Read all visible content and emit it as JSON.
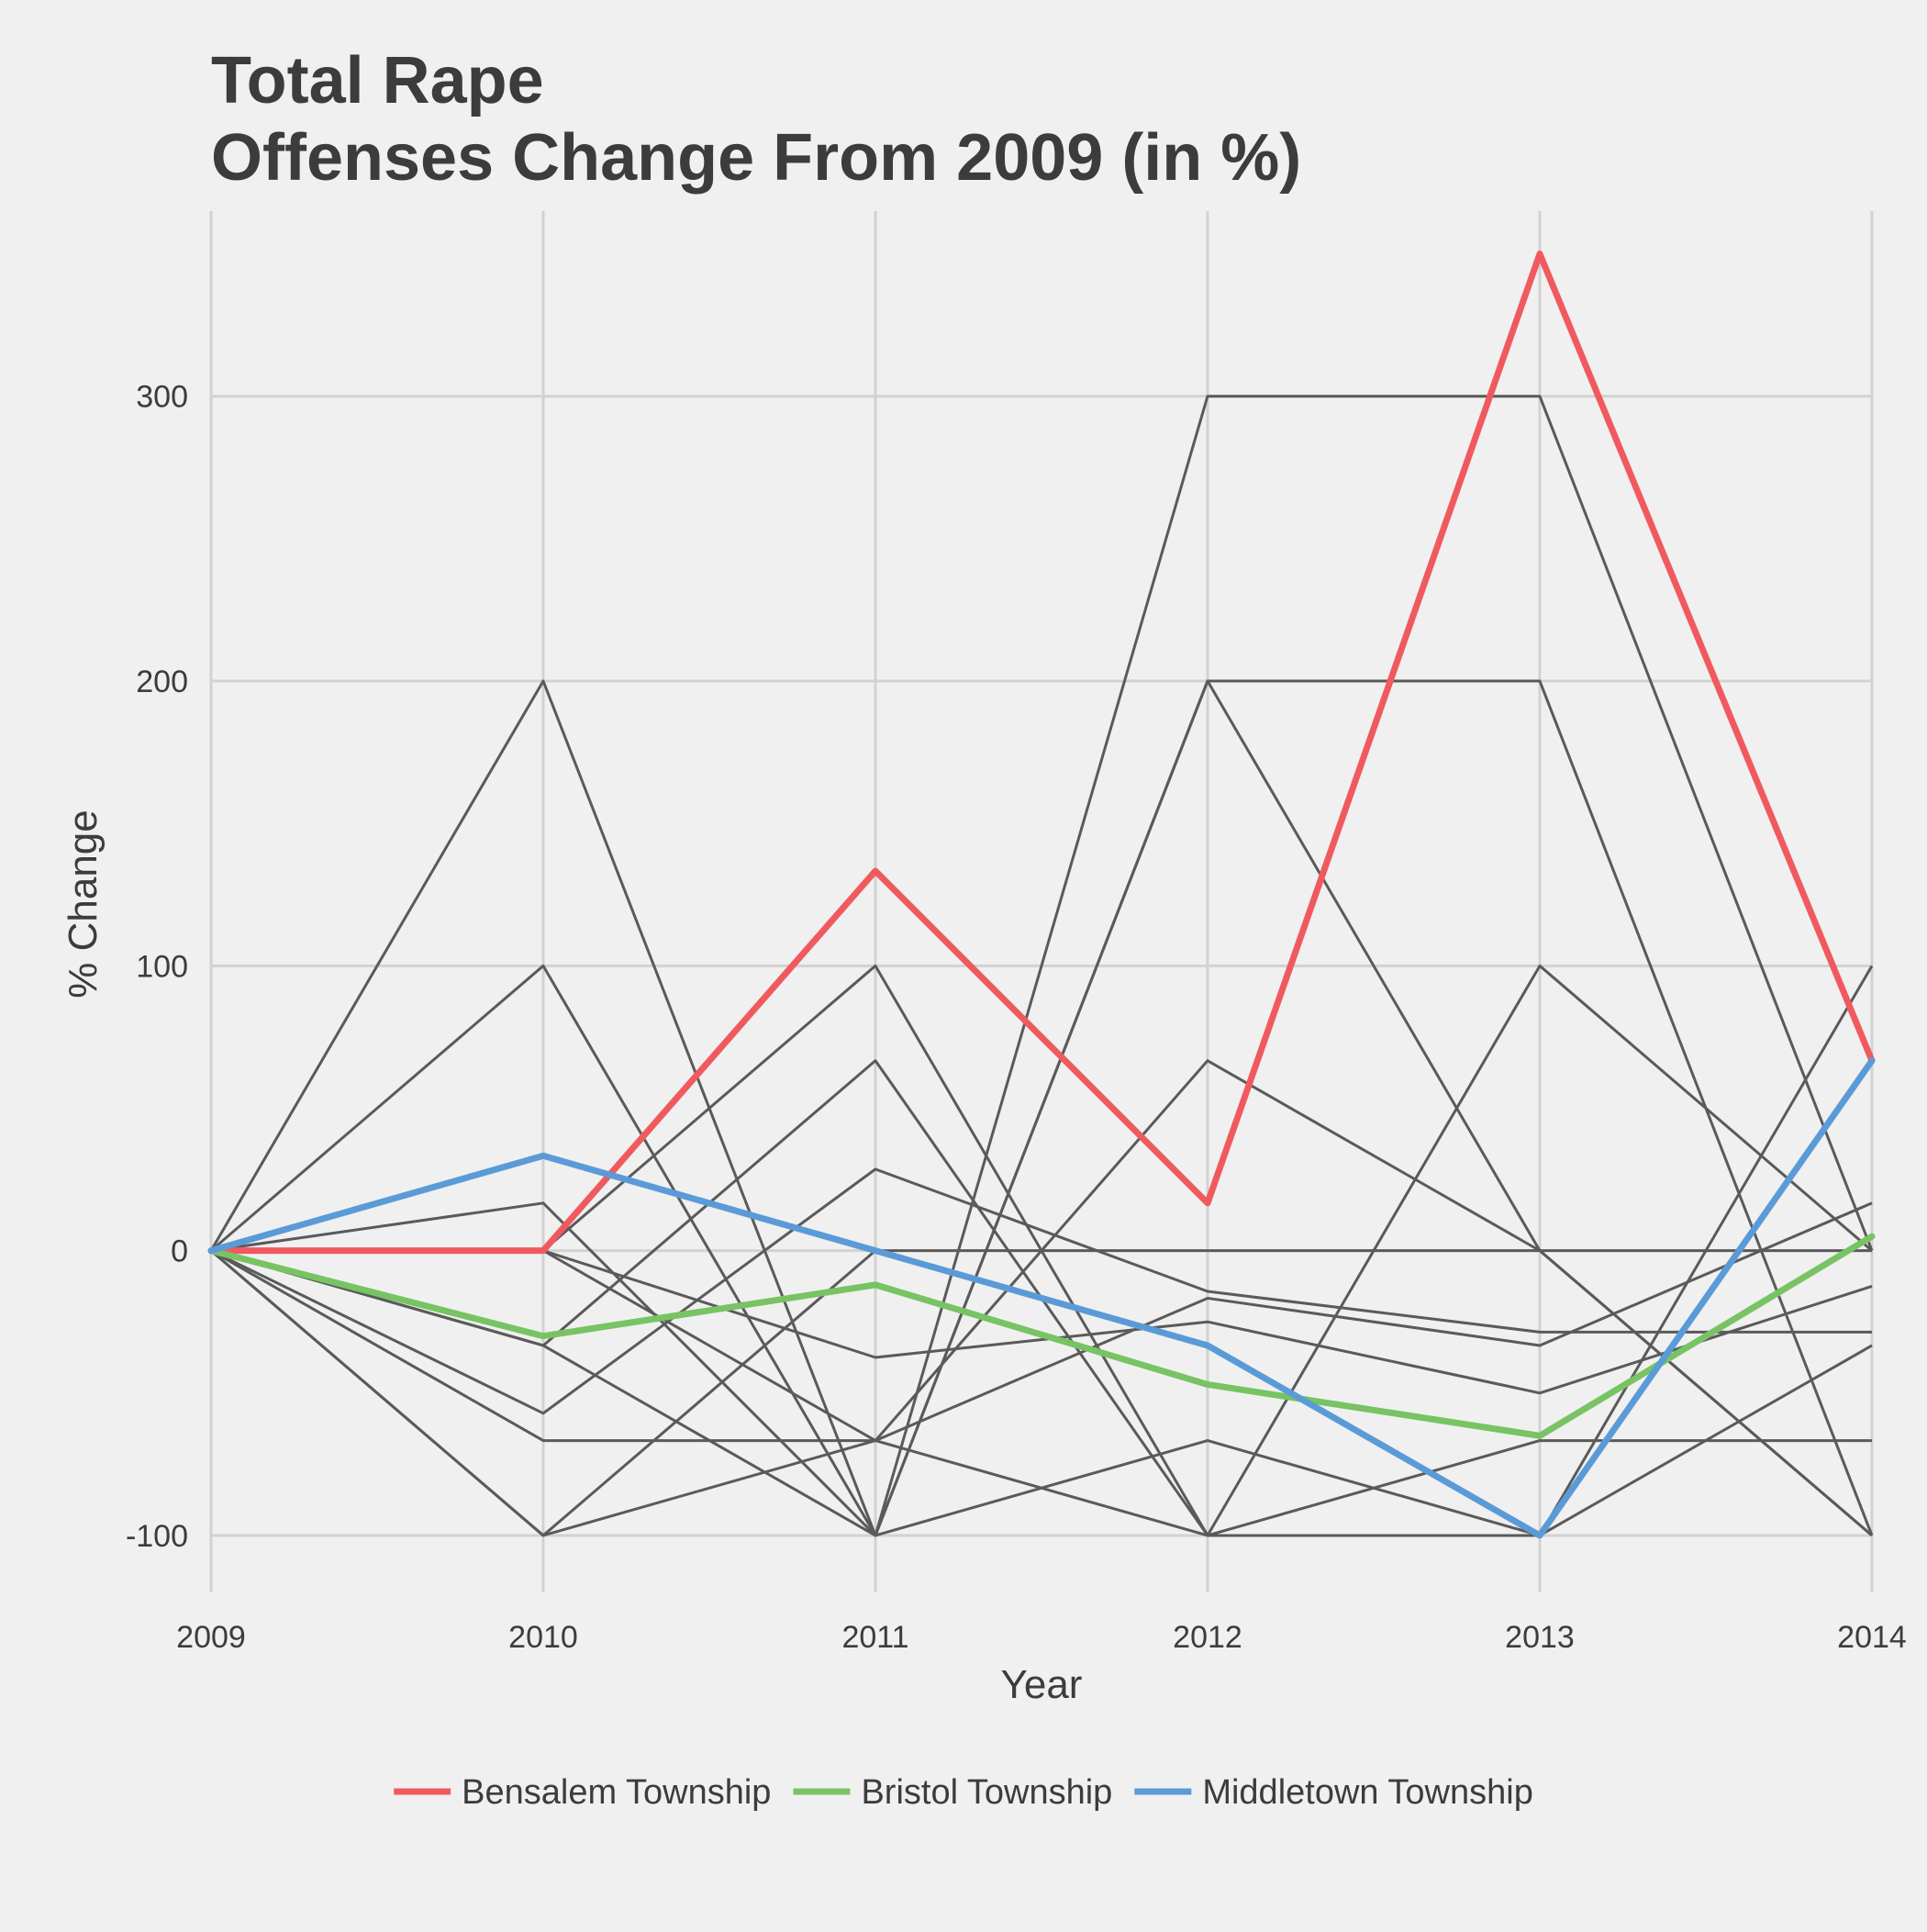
{
  "chart_data": {
    "type": "line",
    "title": "Total Rape",
    "subtitle": "Offenses Change From 2009 (in %)",
    "xlabel": "Year",
    "ylabel": "% Change",
    "x": [
      2009,
      2010,
      2011,
      2012,
      2013,
      2014
    ],
    "xlim": [
      2009,
      2014
    ],
    "ylim": [
      -120,
      365
    ],
    "yticks": [
      -100,
      0,
      100,
      200,
      300
    ],
    "grid": true,
    "legend_position": "bottom",
    "colors": {
      "background": "#f0f0f0",
      "grid": "#d2d2d2",
      "other_series": "#5a5a5a",
      "text": "#3c3c3c"
    },
    "background_series": [
      {
        "values": [
          0,
          200,
          -100,
          300,
          300,
          0
        ]
      },
      {
        "values": [
          0,
          100,
          -100,
          200,
          200,
          -100
        ]
      },
      {
        "values": [
          0,
          0,
          100,
          -100,
          100,
          0
        ]
      },
      {
        "values": [
          0,
          16.7,
          -100,
          200,
          0,
          -100
        ]
      },
      {
        "values": [
          0,
          -33.3,
          66.7,
          -100,
          -100,
          100
        ]
      },
      {
        "values": [
          0,
          -100,
          0,
          0,
          0,
          0
        ]
      },
      {
        "values": [
          0,
          -57.1,
          28.6,
          -14.3,
          -28.6,
          -28.6
        ]
      },
      {
        "values": [
          0,
          -66.7,
          -66.7,
          66.7,
          0,
          -100
        ]
      },
      {
        "values": [
          0,
          0,
          -37.5,
          -25,
          -50,
          -12.5
        ]
      },
      {
        "values": [
          0,
          0,
          -66.7,
          -16.7,
          -33.3,
          16.7
        ]
      },
      {
        "values": [
          0,
          -33.3,
          -100,
          -66.7,
          -100,
          -33.3
        ]
      },
      {
        "values": [
          0,
          -100,
          -66.7,
          -100,
          -66.7,
          -66.7
        ]
      }
    ],
    "series": [
      {
        "name": "Bensalem Township",
        "color": "#f05a5f",
        "values": [
          0,
          0,
          133.3,
          16.7,
          350,
          66.7
        ]
      },
      {
        "name": "Bristol Township",
        "color": "#78c364",
        "values": [
          0,
          -30,
          -12,
          -47,
          -65,
          5
        ]
      },
      {
        "name": "Middletown Township",
        "color": "#5a9bd7",
        "values": [
          0,
          33.3,
          0,
          -33.3,
          -100,
          66.7
        ]
      }
    ]
  }
}
